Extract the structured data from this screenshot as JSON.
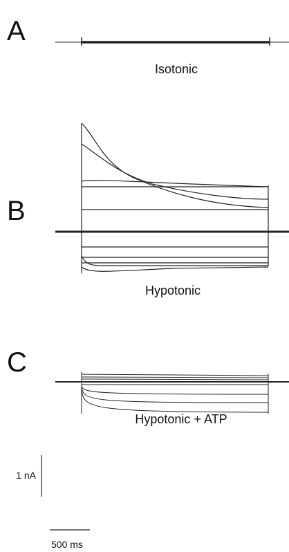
{
  "panels": [
    {
      "letter": "A",
      "caption": "Isotonic"
    },
    {
      "letter": "B",
      "caption": "Hypotonic"
    },
    {
      "letter": "C",
      "caption": "Hypotonic + ATP"
    }
  ],
  "scale_bars": {
    "current": "1 nA",
    "time": "500 ms"
  }
}
